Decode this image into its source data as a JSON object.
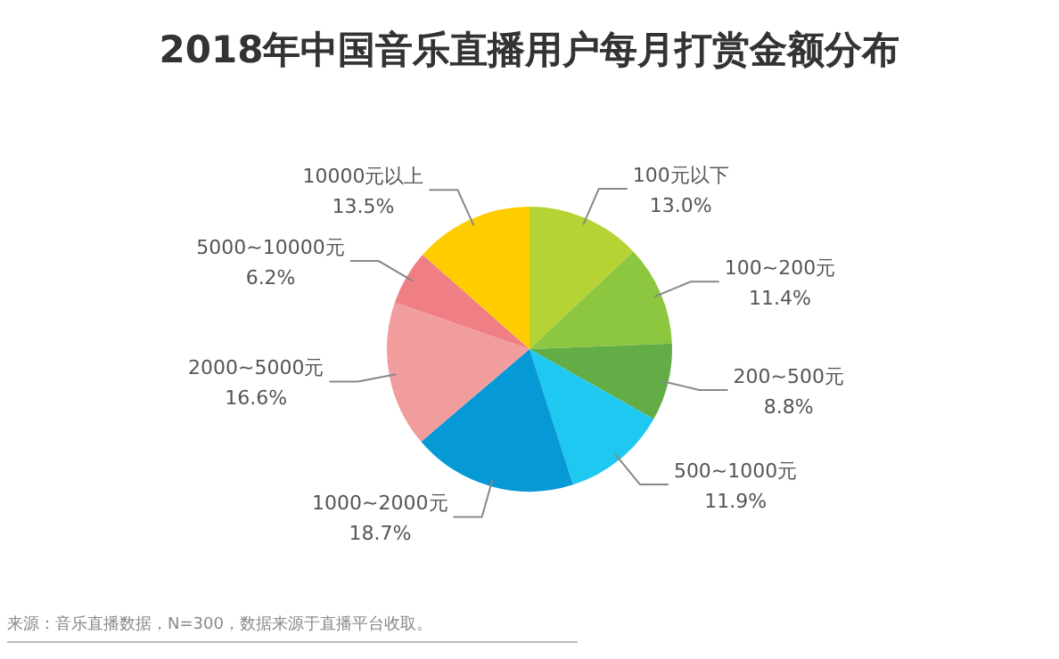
{
  "chart_data": {
    "type": "pie",
    "title": "2018年中国音乐直播用户每月打赏金额分布",
    "categories": [
      "100元以下",
      "100~200元",
      "200~500元",
      "500~1000元",
      "1000~2000元",
      "2000~5000元",
      "5000~10000元",
      "10000元以上"
    ],
    "values": [
      13.0,
      11.4,
      8.8,
      11.9,
      18.7,
      16.6,
      6.2,
      13.5
    ],
    "colors": [
      "#b5d334",
      "#8dc63f",
      "#62ad46",
      "#1fc8f0",
      "#0599d6",
      "#f29d9d",
      "#ef7f85",
      "#ffcc00"
    ],
    "value_labels": [
      "13.0%",
      "11.4%",
      "8.8%",
      "11.9%",
      "18.7%",
      "16.6%",
      "6.2%",
      "13.5%"
    ],
    "annotations": [
      "来源：音乐直播数据，N=300，数据来源于直播平台收取。"
    ]
  }
}
